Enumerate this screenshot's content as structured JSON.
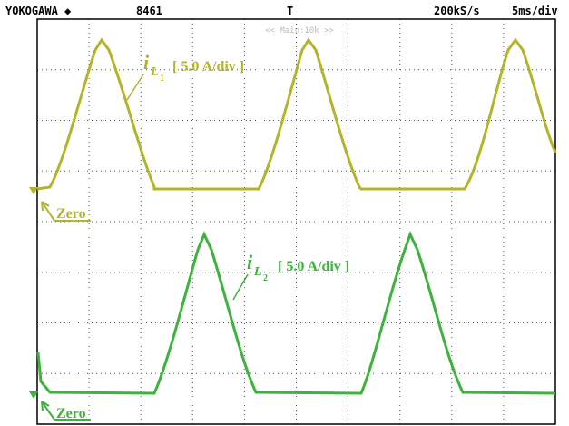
{
  "header": {
    "brand": "YOKOGAWA ◆",
    "record": "8461",
    "trigger": "T",
    "sample_rate": "200kS/s",
    "timebase": "5ms/div",
    "zoom": "<< Main:10k >>"
  },
  "traces": [
    {
      "symbol": "i",
      "sub": "L",
      "subsub": "1",
      "scale": "[ 5.0 A/div ]",
      "zero": "Zero",
      "color": "#b4b428"
    },
    {
      "symbol": "i",
      "sub": "L",
      "subsub": "2",
      "scale": "[ 5.0 A/div ]",
      "zero": "Zero",
      "color": "#3cb43c"
    }
  ]
}
